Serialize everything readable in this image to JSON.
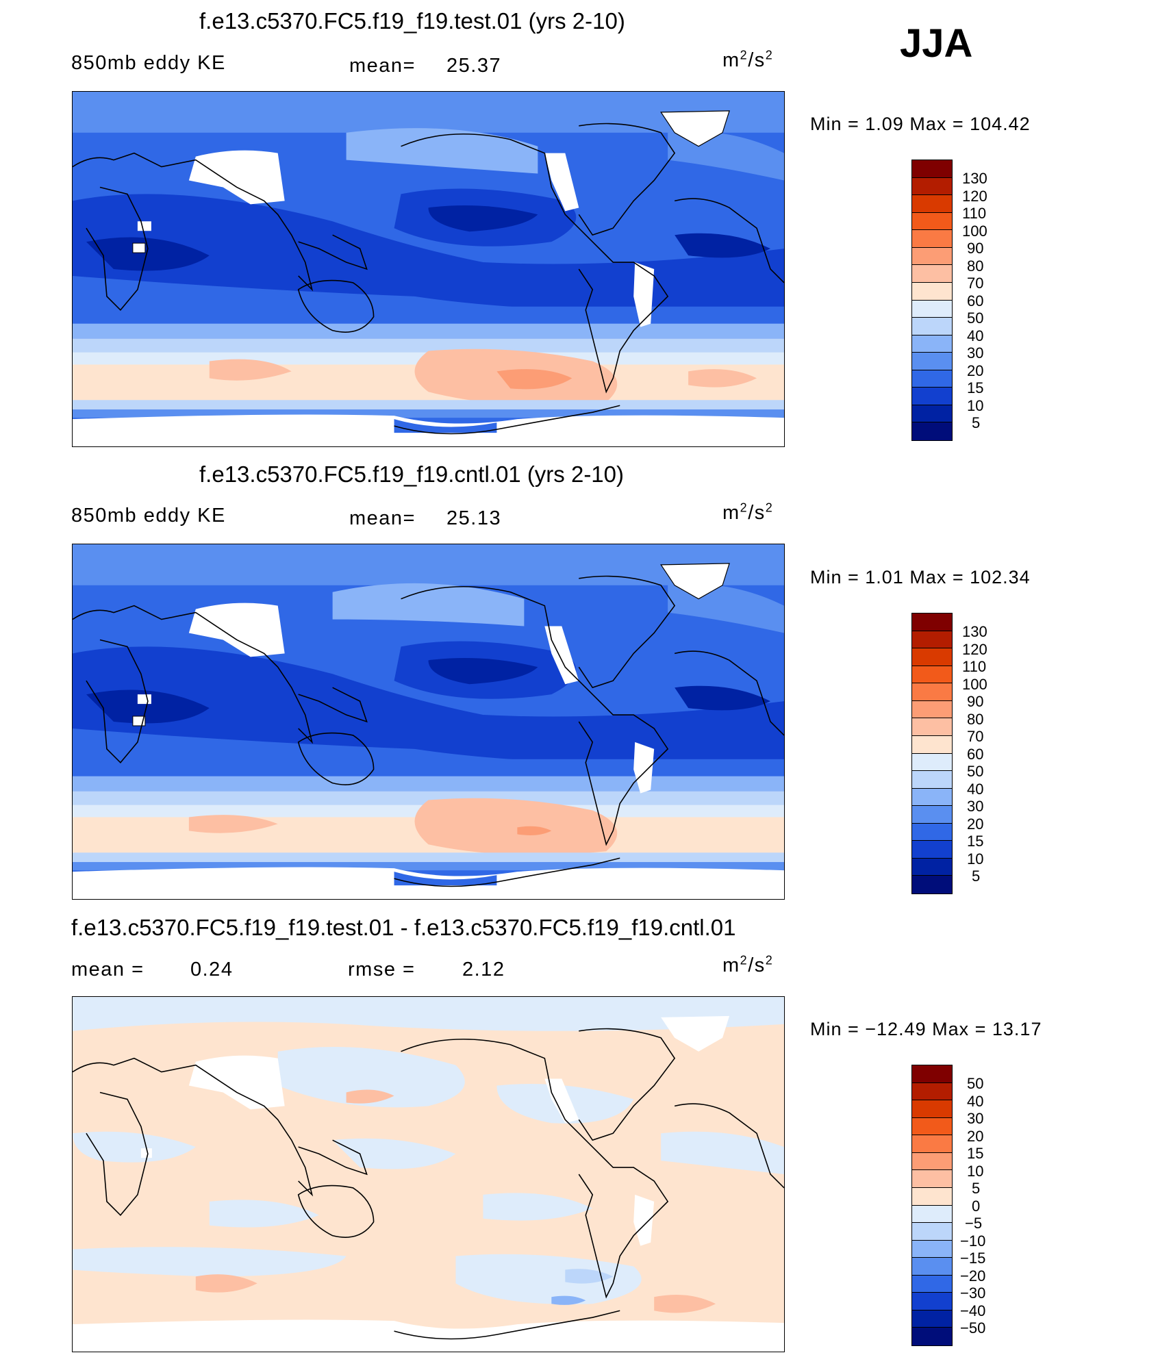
{
  "season": "JJA",
  "panels": [
    {
      "id": "test",
      "title": "f.e13.c5370.FC5.f19_f19.test.01 (yrs 2-10)",
      "variable": "850mb eddy KE",
      "stat_label": "mean=",
      "stat_value": "25.37",
      "units_base": "m",
      "units_exp1": "2",
      "units_sep": "/s",
      "units_exp2": "2",
      "minmax": "Min  =    1.09  Max  =  104.42"
    },
    {
      "id": "cntl",
      "title": "f.e13.c5370.FC5.f19_f19.cntl.01 (yrs 2-10)",
      "variable": "850mb eddy KE",
      "stat_label": "mean=",
      "stat_value": "25.13",
      "units_base": "m",
      "units_exp1": "2",
      "units_sep": "/s",
      "units_exp2": "2",
      "minmax": "Min  =    1.01  Max  =  102.34"
    },
    {
      "id": "diff",
      "title": "f.e13.c5370.FC5.f19_f19.test.01 - f.e13.c5370.FC5.f19_f19.cntl.01",
      "mean_label": "mean  =",
      "mean_value": "0.24",
      "rmse_label": "rmse  =",
      "rmse_value": "2.12",
      "units_base": "m",
      "units_exp1": "2",
      "units_sep": "/s",
      "units_exp2": "2",
      "minmax": "Min  = −12.49  Max  =    13.17"
    }
  ],
  "colorbars": {
    "field": {
      "ticks": [
        "130",
        "120",
        "110",
        "100",
        "90",
        "80",
        "70",
        "60",
        "50",
        "40",
        "30",
        "20",
        "15",
        "10",
        "5"
      ],
      "colors": [
        "#7f0000",
        "#b31d00",
        "#d93a00",
        "#f25a1a",
        "#fa7a44",
        "#fc9d75",
        "#fdbfa3",
        "#fee4cf",
        "#deecfb",
        "#bcd6fa",
        "#8ab4f8",
        "#5a8ff0",
        "#3068e6",
        "#1240cf",
        "#0022a3",
        "#000d7a"
      ]
    },
    "diff": {
      "ticks": [
        "50",
        "40",
        "30",
        "20",
        "15",
        "10",
        "5",
        "0",
        "−5",
        "−10",
        "−15",
        "−20",
        "−30",
        "−40",
        "−50"
      ],
      "colors": [
        "#7f0000",
        "#b31d00",
        "#d93a00",
        "#f25a1a",
        "#fa7a44",
        "#fc9d75",
        "#fdbfa3",
        "#fee4cf",
        "#deecfb",
        "#bcd6fa",
        "#8ab4f8",
        "#5a8ff0",
        "#3068e6",
        "#1240cf",
        "#0022a3",
        "#000d7a"
      ]
    }
  },
  "chart_data": [
    {
      "type": "heatmap",
      "title": "f.e13.c5370.FC5.f19_f19.test.01 (yrs 2-10)",
      "variable": "850mb eddy KE",
      "units": "m2/s2",
      "mean": 25.37,
      "min": 1.09,
      "max": 104.42,
      "contour_levels": [
        5,
        10,
        15,
        20,
        30,
        40,
        50,
        60,
        70,
        80,
        90,
        100,
        110,
        120,
        130
      ]
    },
    {
      "type": "heatmap",
      "title": "f.e13.c5370.FC5.f19_f19.cntl.01 (yrs 2-10)",
      "variable": "850mb eddy KE",
      "units": "m2/s2",
      "mean": 25.13,
      "min": 1.01,
      "max": 102.34,
      "contour_levels": [
        5,
        10,
        15,
        20,
        30,
        40,
        50,
        60,
        70,
        80,
        90,
        100,
        110,
        120,
        130
      ]
    },
    {
      "type": "heatmap",
      "title": "f.e13.c5370.FC5.f19_f19.test.01 - f.e13.c5370.FC5.f19_f19.cntl.01",
      "units": "m2/s2",
      "mean": 0.24,
      "rmse": 2.12,
      "min": -12.49,
      "max": 13.17,
      "contour_levels": [
        -50,
        -40,
        -30,
        -20,
        -15,
        -10,
        -5,
        0,
        5,
        10,
        15,
        20,
        30,
        40,
        50
      ]
    }
  ]
}
